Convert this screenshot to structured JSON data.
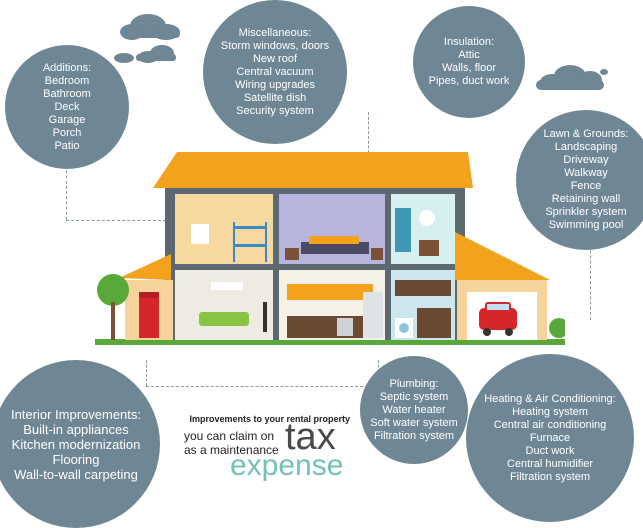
{
  "additions": {
    "title": "Additions:",
    "items": [
      "Bedroom",
      "Bathroom",
      "Deck",
      "Garage",
      "Porch",
      "Patio"
    ]
  },
  "misc": {
    "title": "Miscellaneous:",
    "items": [
      "Storm windows, doors",
      "New roof",
      "Central vacuum",
      "Wiring upgrades",
      "Satellite dish",
      "Security system"
    ]
  },
  "insulation": {
    "title": "Insulation:",
    "items": [
      "Attic",
      "Walls, floor",
      "Pipes, duct work"
    ]
  },
  "lawn": {
    "title": "Lawn & Grounds:",
    "items": [
      "Landscaping",
      "Driveway",
      "Walkway",
      "Fence",
      "Retaining wall",
      "Sprinkler system",
      "Swimming pool"
    ]
  },
  "interior": {
    "title": "Interior Improvements:",
    "items": [
      "Built-in appliances",
      "Kitchen modernization",
      "Flooring",
      "Wall-to-wall carpeting"
    ]
  },
  "plumbing": {
    "title": "Plumbing:",
    "items": [
      "Septic system",
      "Water heater",
      "Soft water system",
      "Filtration system"
    ]
  },
  "hvac": {
    "title": "Heating & Air Conditioning:",
    "items": [
      "Heating system",
      "Central air conditioning",
      "Furnace",
      "Duct work",
      "Central humidifier",
      "Filtration system"
    ]
  },
  "tagline": {
    "line1": "Improvements to your rental property",
    "line2": "you can claim on",
    "line3": "as a maintenance",
    "tax": "tax",
    "expense": "expense"
  },
  "colors": {
    "circle": "#6f8794",
    "roof": "#f2a21c",
    "accent_teal": "#74c1b8",
    "ground": "#5aa83a"
  }
}
